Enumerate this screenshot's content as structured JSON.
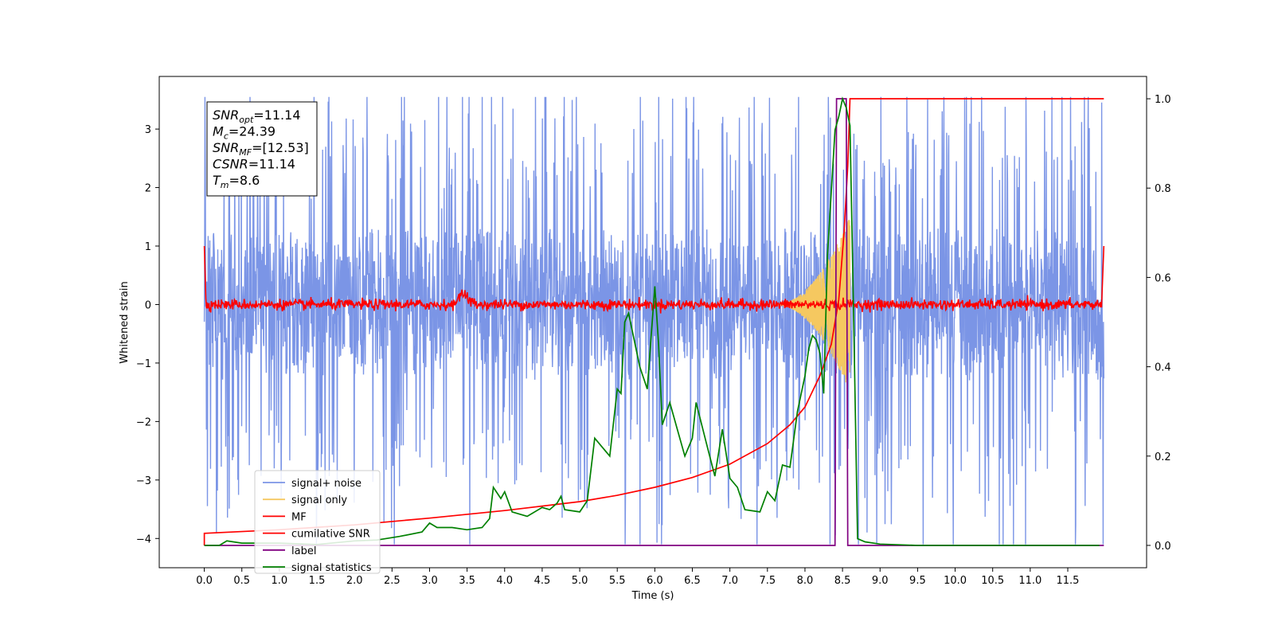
{
  "chart_data": {
    "type": "line",
    "xlabel": "Time (s)",
    "ylabel": "Whitened strain",
    "xlim": [
      -0.6,
      12.55
    ],
    "ylim": [
      -4.5,
      3.9
    ],
    "y2lim": [
      -0.05,
      1.05
    ],
    "x_ticks": [
      "0.0",
      "0.5",
      "1.0",
      "1.5",
      "2.0",
      "2.5",
      "3.0",
      "3.5",
      "4.0",
      "4.5",
      "5.0",
      "5.5",
      "6.0",
      "6.5",
      "7.0",
      "7.5",
      "8.0",
      "8.5",
      "9.0",
      "9.5",
      "10.0",
      "10.5",
      "11.0",
      "11.5"
    ],
    "y_ticks": [
      "3",
      "2",
      "1",
      "0",
      "−1",
      "−2",
      "−3",
      "−4"
    ],
    "y2_ticks": [
      "1.0",
      "0.8",
      "0.6",
      "0.4",
      "0.2",
      "0.0"
    ],
    "legend_position": "lower-left",
    "annotation": {
      "lines": [
        {
          "sym": "SNR",
          "sub": "opt",
          "value": "=11.14"
        },
        {
          "sym": "M",
          "sub": "c",
          "value": "=24.39"
        },
        {
          "sym": "SNR",
          "sub": "MF",
          "value": "=[12.53]"
        },
        {
          "sym": "CSNR",
          "sub": "",
          "value": "=11.14"
        },
        {
          "sym": "T",
          "sub": "m",
          "value": "=8.6"
        }
      ]
    },
    "series": [
      {
        "name": "signal+ noise",
        "color": "#7b95e6",
        "axis": "left",
        "description_values": {
          "x_range": [
            0,
            11.98
          ],
          "amplitude_range": [
            -4.1,
            3.55
          ],
          "typical_band": [
            -1.6,
            1.6
          ]
        }
      },
      {
        "name": "signal only",
        "color": "#f5c860",
        "axis": "left",
        "chirp": {
          "start": 7.6,
          "end": 8.6,
          "peak_amplitude": 1.5
        }
      },
      {
        "name": "MF",
        "color": "#ff0000",
        "axis": "left",
        "points": [
          [
            0.0,
            1.0
          ],
          [
            0.02,
            0.1
          ],
          [
            0.05,
            0.0
          ],
          [
            3.2,
            0.0
          ],
          [
            3.45,
            0.3
          ],
          [
            3.55,
            0.05
          ],
          [
            11.95,
            0.0
          ],
          [
            11.98,
            1.0
          ]
        ]
      },
      {
        "name": "cumilative SNR",
        "color": "#ff0000",
        "axis": "right",
        "points": [
          [
            0.0,
            0.0
          ],
          [
            0.0,
            0.027
          ],
          [
            1.0,
            0.035
          ],
          [
            2.0,
            0.046
          ],
          [
            3.0,
            0.061
          ],
          [
            4.0,
            0.078
          ],
          [
            5.0,
            0.098
          ],
          [
            5.5,
            0.112
          ],
          [
            6.0,
            0.13
          ],
          [
            6.5,
            0.152
          ],
          [
            7.0,
            0.182
          ],
          [
            7.5,
            0.228
          ],
          [
            7.8,
            0.27
          ],
          [
            8.0,
            0.31
          ],
          [
            8.2,
            0.38
          ],
          [
            8.35,
            0.45
          ],
          [
            8.45,
            0.55
          ],
          [
            8.52,
            0.7
          ],
          [
            8.57,
            0.85
          ],
          [
            8.6,
            1.0
          ],
          [
            11.98,
            1.0
          ]
        ]
      },
      {
        "name": "label",
        "color": "#800080",
        "axis": "right",
        "points": [
          [
            0.0,
            0.0
          ],
          [
            8.4,
            0.0
          ],
          [
            8.42,
            1.0
          ],
          [
            8.55,
            1.0
          ],
          [
            8.57,
            0.0
          ],
          [
            11.98,
            0.0
          ]
        ]
      },
      {
        "name": "signal statistics",
        "color": "#008000",
        "axis": "right",
        "points": [
          [
            0.0,
            0.0
          ],
          [
            0.2,
            0.0
          ],
          [
            0.3,
            0.01
          ],
          [
            0.5,
            0.005
          ],
          [
            1.0,
            0.005
          ],
          [
            1.5,
            0.002
          ],
          [
            2.0,
            0.01
          ],
          [
            2.3,
            0.012
          ],
          [
            2.6,
            0.02
          ],
          [
            2.9,
            0.03
          ],
          [
            3.0,
            0.05
          ],
          [
            3.1,
            0.04
          ],
          [
            3.3,
            0.04
          ],
          [
            3.5,
            0.035
          ],
          [
            3.7,
            0.04
          ],
          [
            3.8,
            0.06
          ],
          [
            3.85,
            0.13
          ],
          [
            3.95,
            0.105
          ],
          [
            4.0,
            0.12
          ],
          [
            4.1,
            0.075
          ],
          [
            4.3,
            0.065
          ],
          [
            4.5,
            0.085
          ],
          [
            4.6,
            0.08
          ],
          [
            4.7,
            0.095
          ],
          [
            4.75,
            0.11
          ],
          [
            4.8,
            0.08
          ],
          [
            5.0,
            0.075
          ],
          [
            5.1,
            0.1
          ],
          [
            5.2,
            0.24
          ],
          [
            5.3,
            0.22
          ],
          [
            5.4,
            0.2
          ],
          [
            5.5,
            0.35
          ],
          [
            5.55,
            0.34
          ],
          [
            5.6,
            0.5
          ],
          [
            5.65,
            0.52
          ],
          [
            5.7,
            0.48
          ],
          [
            5.8,
            0.4
          ],
          [
            5.9,
            0.35
          ],
          [
            6.0,
            0.58
          ],
          [
            6.05,
            0.45
          ],
          [
            6.1,
            0.27
          ],
          [
            6.2,
            0.32
          ],
          [
            6.3,
            0.26
          ],
          [
            6.4,
            0.2
          ],
          [
            6.5,
            0.24
          ],
          [
            6.55,
            0.32
          ],
          [
            6.7,
            0.22
          ],
          [
            6.8,
            0.155
          ],
          [
            6.9,
            0.26
          ],
          [
            7.0,
            0.15
          ],
          [
            7.1,
            0.13
          ],
          [
            7.2,
            0.08
          ],
          [
            7.4,
            0.075
          ],
          [
            7.5,
            0.12
          ],
          [
            7.6,
            0.1
          ],
          [
            7.7,
            0.18
          ],
          [
            7.8,
            0.175
          ],
          [
            7.9,
            0.3
          ],
          [
            8.0,
            0.38
          ],
          [
            8.05,
            0.44
          ],
          [
            8.1,
            0.47
          ],
          [
            8.15,
            0.46
          ],
          [
            8.2,
            0.43
          ],
          [
            8.25,
            0.34
          ],
          [
            8.3,
            0.65
          ],
          [
            8.4,
            0.93
          ],
          [
            8.45,
            0.96
          ],
          [
            8.5,
            1.0
          ],
          [
            8.55,
            0.98
          ],
          [
            8.6,
            0.94
          ],
          [
            8.65,
            0.5
          ],
          [
            8.7,
            0.015
          ],
          [
            8.8,
            0.008
          ],
          [
            9.0,
            0.003
          ],
          [
            9.5,
            0.0
          ],
          [
            11.92,
            0.0
          ]
        ]
      }
    ]
  }
}
